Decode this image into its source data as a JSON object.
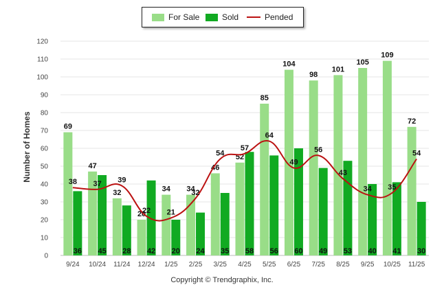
{
  "chart_data": {
    "type": "bar",
    "title": "",
    "ylabel": "Number of Homes",
    "xlabel": "",
    "ylim": [
      0,
      120
    ],
    "yticks": [
      0,
      10,
      20,
      30,
      40,
      50,
      60,
      70,
      80,
      90,
      100,
      110,
      120
    ],
    "grid": true,
    "legend_position": "top-center",
    "categories": [
      "9/24",
      "10/24",
      "11/24",
      "12/24",
      "1/25",
      "2/25",
      "3/25",
      "4/25",
      "5/25",
      "6/25",
      "7/25",
      "8/25",
      "9/25",
      "10/25",
      "11/25"
    ],
    "series": [
      {
        "name": "For Sale",
        "kind": "bar",
        "color": "#99dd88",
        "values": [
          69,
          47,
          32,
          20,
          34,
          34,
          46,
          52,
          85,
          104,
          98,
          101,
          105,
          109,
          72
        ]
      },
      {
        "name": "Sold",
        "kind": "bar",
        "color": "#11aa22",
        "values": [
          36,
          45,
          28,
          42,
          20,
          24,
          35,
          58,
          56,
          60,
          49,
          53,
          40,
          41,
          30
        ]
      },
      {
        "name": "Pended",
        "kind": "line",
        "color": "#bb1111",
        "values": [
          38,
          37,
          39,
          22,
          21,
          32,
          54,
          57,
          64,
          49,
          56,
          43,
          34,
          35,
          54
        ]
      }
    ]
  },
  "legend": {
    "for_sale": "For Sale",
    "sold": "Sold",
    "pended": "Pended"
  },
  "colors": {
    "for_sale": "#99dd88",
    "sold": "#11aa22",
    "pended": "#bb1111"
  },
  "footer": {
    "copyright": "Copyright © Trendgraphix, Inc."
  }
}
